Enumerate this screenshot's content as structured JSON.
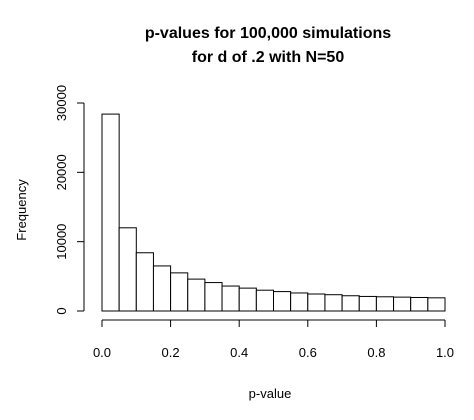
{
  "chart_data": {
    "type": "bar",
    "title_lines": [
      "p-values for 100,000 simulations",
      "for d of .2 with N=50"
    ],
    "xlabel": "p-value",
    "ylabel": "Frequency",
    "bin_edges": [
      0,
      0.05,
      0.1,
      0.15,
      0.2,
      0.25,
      0.3,
      0.35,
      0.4,
      0.45,
      0.5,
      0.55,
      0.6,
      0.65,
      0.7,
      0.75,
      0.8,
      0.85,
      0.9,
      0.95,
      1.0
    ],
    "values": [
      28400,
      12000,
      8400,
      6500,
      5500,
      4600,
      4100,
      3600,
      3300,
      3000,
      2800,
      2600,
      2450,
      2350,
      2200,
      2100,
      2050,
      2000,
      1950,
      1900
    ],
    "xlim": [
      0,
      1
    ],
    "ylim": [
      0,
      30000
    ],
    "x_ticks": [
      0,
      0.2,
      0.4,
      0.6,
      0.8,
      1.0
    ],
    "x_tick_labels": [
      "0.0",
      "0.2",
      "0.4",
      "0.6",
      "0.8",
      "1.0"
    ],
    "y_ticks": [
      0,
      10000,
      20000,
      30000
    ],
    "y_tick_labels": [
      "0",
      "10000",
      "20000",
      "30000"
    ],
    "grid": false,
    "legend": "none",
    "bar_fill": "#ffffff",
    "bar_stroke": "#000000"
  }
}
